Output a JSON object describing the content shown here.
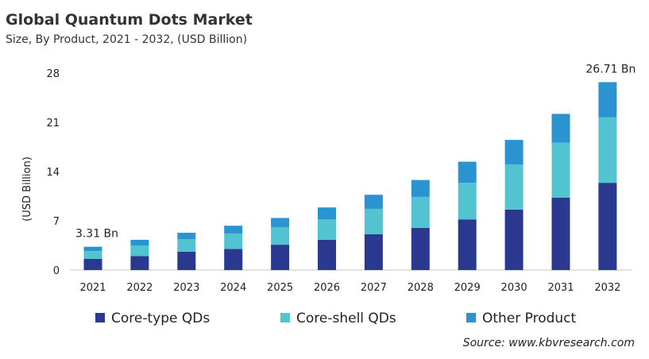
{
  "chart_data": {
    "type": "bar",
    "stacked": true,
    "title": "Global Quantum Dots Market",
    "subtitle": "Size, By Product, 2021 - 2032, (USD Billion)",
    "ylabel": "(USD Billion)",
    "xlabel": "",
    "ylim": [
      0,
      28
    ],
    "yticks": [
      0,
      7,
      14,
      21,
      28
    ],
    "grid": false,
    "legend": "bottom",
    "categories": [
      "2021",
      "2022",
      "2023",
      "2024",
      "2025",
      "2026",
      "2027",
      "2028",
      "2029",
      "2030",
      "2031",
      "2032"
    ],
    "series": [
      {
        "name": "Core-type QDs",
        "color": "#2b388f",
        "values": [
          1.6,
          2.0,
          2.6,
          3.0,
          3.6,
          4.3,
          5.1,
          6.0,
          7.2,
          8.6,
          10.3,
          12.4
        ]
      },
      {
        "name": "Core-shell QDs",
        "color": "#52c4d1",
        "values": [
          1.1,
          1.5,
          1.8,
          2.2,
          2.5,
          2.9,
          3.6,
          4.4,
          5.2,
          6.4,
          7.8,
          9.3
        ]
      },
      {
        "name": "Other Product",
        "color": "#2b93d0",
        "values": [
          0.61,
          0.8,
          0.9,
          1.1,
          1.3,
          1.7,
          2.0,
          2.4,
          3.0,
          3.5,
          4.1,
          5.01
        ]
      }
    ],
    "annotations": [
      {
        "category": "2021",
        "text": "3.31 Bn"
      },
      {
        "category": "2032",
        "text": "26.71 Bn"
      }
    ]
  },
  "source": "Source: www.kbvresearch.com"
}
